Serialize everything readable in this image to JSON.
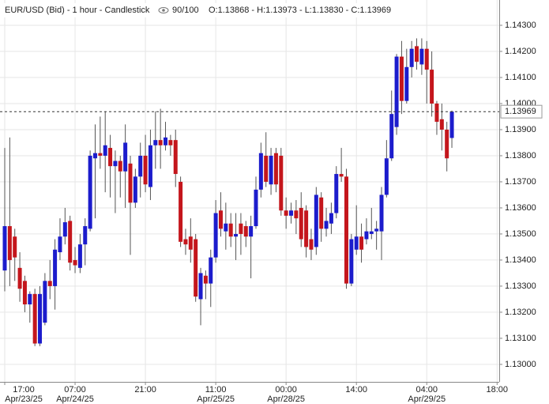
{
  "header": {
    "title": "EUR/USD (Bid) - 1 hour - Candlestick",
    "zoom": "90/100",
    "ohlc": "O:1.13868 - H:1.13973 - L:1.13830 - C:1.13969"
  },
  "chart_data": {
    "type": "candlestick",
    "categories": [
      "17:00",
      null,
      null,
      null,
      null,
      null,
      null,
      null,
      null,
      null,
      null,
      null,
      null,
      null,
      "07:00",
      null,
      null,
      null,
      null,
      null,
      null,
      null,
      null,
      null,
      null,
      null,
      null,
      null,
      "21:00",
      null,
      null,
      null,
      null,
      null,
      null,
      null,
      null,
      null,
      null,
      null,
      null,
      null,
      "11:00",
      null,
      null,
      null,
      null,
      null,
      null,
      null,
      null,
      null,
      null,
      null,
      null,
      null,
      "00:00",
      null,
      null,
      null,
      null,
      null,
      null,
      null,
      null,
      null,
      null,
      null,
      null,
      null,
      "14:00",
      null,
      null,
      null,
      null,
      null,
      null,
      null,
      null,
      null,
      null,
      null,
      null,
      null,
      "04:00",
      null,
      null,
      null,
      null,
      null,
      null,
      null,
      null,
      null,
      null,
      null,
      null,
      null,
      "18:00"
    ],
    "category_dates": [
      "Apr/23/25",
      null,
      null,
      null,
      null,
      null,
      null,
      null,
      null,
      null,
      null,
      null,
      null,
      null,
      "Apr/24/25",
      null,
      null,
      null,
      null,
      null,
      null,
      null,
      null,
      null,
      null,
      null,
      null,
      null,
      null,
      null,
      null,
      null,
      null,
      null,
      null,
      null,
      null,
      null,
      null,
      null,
      null,
      null,
      "Apr/25/25",
      null,
      null,
      null,
      null,
      null,
      null,
      null,
      null,
      null,
      null,
      null,
      null,
      null,
      "Apr/28/25",
      null,
      null,
      null,
      null,
      null,
      null,
      null,
      null,
      null,
      null,
      null,
      null,
      null,
      null,
      null,
      null,
      null,
      null,
      null,
      null,
      null,
      null,
      null,
      null,
      null,
      null,
      null,
      "Apr/29/25",
      null,
      null,
      null,
      null,
      null,
      null,
      null,
      null,
      null,
      null,
      null,
      null,
      null,
      null
    ],
    "open": [
      1.1336,
      1.1353,
      1.1349,
      1.1337,
      1.1332,
      1.1323,
      1.1327,
      1.1308,
      1.1316,
      1.1332,
      1.133,
      1.1343,
      1.1349,
      1.1355,
      1.134,
      1.1337,
      1.1346,
      1.1352,
      1.1379,
      1.1381,
      1.138,
      1.1383,
      1.1376,
      1.1378,
      1.1374,
      1.1377,
      1.1362,
      1.1372,
      1.138,
      1.1368,
      1.1384,
      1.1386,
      1.1384,
      1.1386,
      1.1386,
      1.137,
      1.1348,
      1.1349,
      1.1348,
      1.1325,
      1.1334,
      1.1331,
      1.1341,
      1.1359,
      1.1351,
      1.1354,
      1.1349,
      1.1354,
      1.1353,
      1.1349,
      1.1353,
      1.1367,
      1.138,
      1.1369,
      1.1381,
      1.138,
      1.1359,
      1.1357,
      1.1359,
      1.136,
      1.1359,
      1.1348,
      1.1345,
      1.1364,
      1.1352,
      1.1354,
      1.1358,
      1.1373,
      1.1372,
      1.1331,
      1.1344,
      1.1349,
      1.1348,
      1.135,
      1.1351,
      1.1351,
      1.1365,
      1.1379,
      1.1391,
      1.1418,
      1.1401,
      1.1414,
      1.1422,
      1.1415,
      1.1421,
      1.1413,
      1.14,
      1.1394,
      1.139,
      1.13868,
      null,
      null,
      null,
      null,
      null,
      null,
      null,
      null,
      null
    ],
    "high": [
      1.1383,
      1.1387,
      1.1352,
      1.1343,
      1.1334,
      1.1328,
      1.1329,
      1.133,
      1.1335,
      1.134,
      1.1348,
      1.1356,
      1.136,
      1.1357,
      1.1345,
      1.135,
      1.1356,
      1.1382,
      1.1392,
      1.1395,
      1.1397,
      1.1388,
      1.1382,
      1.138,
      1.1392,
      1.138,
      1.1375,
      1.1385,
      1.1388,
      1.139,
      1.1397,
      1.1398,
      1.1393,
      1.1388,
      1.139,
      1.1372,
      1.1352,
      1.1356,
      1.135,
      1.1337,
      1.1336,
      1.1344,
      1.1363,
      1.1366,
      1.1362,
      1.1358,
      1.1358,
      1.1358,
      1.1355,
      1.1357,
      1.1372,
      1.1385,
      1.1389,
      1.1383,
      1.1383,
      1.1383,
      1.1364,
      1.1362,
      1.1363,
      1.1366,
      1.1361,
      1.1352,
      1.1368,
      1.1366,
      1.136,
      1.1362,
      1.1376,
      1.1383,
      1.1375,
      1.135,
      1.1361,
      1.1354,
      1.1356,
      1.136,
      1.1355,
      1.1368,
      1.1386,
      1.1405,
      1.1419,
      1.1424,
      1.1421,
      1.1424,
      1.1425,
      1.1425,
      1.1424,
      1.142,
      1.1401,
      1.14,
      1.1393,
      1.13973,
      null,
      null,
      null,
      null,
      null,
      null,
      null,
      null,
      null
    ],
    "low": [
      1.1328,
      1.133,
      1.1332,
      1.1324,
      1.132,
      1.1316,
      1.1307,
      1.1307,
      1.1315,
      1.1325,
      1.1321,
      1.134,
      1.1346,
      1.1336,
      1.1335,
      1.1335,
      1.1338,
      1.1351,
      1.1356,
      1.1375,
      1.1366,
      1.1364,
      1.1358,
      1.1364,
      1.136,
      1.1342,
      1.136,
      1.1364,
      1.1366,
      1.1363,
      1.1375,
      1.1375,
      1.1382,
      1.138,
      1.1368,
      1.1345,
      1.1342,
      1.1339,
      1.1324,
      1.1315,
      1.1325,
      1.1322,
      1.1339,
      1.1349,
      1.1344,
      1.1345,
      1.134,
      1.1342,
      1.1345,
      1.1333,
      1.1352,
      1.1364,
      1.1368,
      1.1365,
      1.1366,
      1.1357,
      1.1352,
      1.1354,
      1.135,
      1.1345,
      1.1341,
      1.134,
      1.1342,
      1.1347,
      1.1349,
      1.135,
      1.1356,
      1.137,
      1.1329,
      1.133,
      1.1342,
      1.1339,
      1.1346,
      1.1348,
      1.1344,
      1.134,
      1.1364,
      1.1378,
      1.1388,
      1.1396,
      1.14,
      1.141,
      1.1413,
      1.1411,
      1.14,
      1.1395,
      1.1388,
      1.1382,
      1.1374,
      1.1383,
      null,
      null,
      null,
      null,
      null,
      null,
      null,
      null,
      null
    ],
    "close": [
      1.1353,
      1.134,
      1.1341,
      1.1329,
      1.1323,
      1.1327,
      1.1308,
      1.1327,
      1.1332,
      1.133,
      1.1344,
      1.1349,
      1.13545,
      1.1339,
      1.1338,
      1.1346,
      1.1353,
      1.138,
      1.1381,
      1.138,
      1.1384,
      1.1376,
      1.1378,
      1.1374,
      1.1385,
      1.1362,
      1.1372,
      1.138,
      1.1369,
      1.1384,
      1.1386,
      1.1384,
      1.1387,
      1.1384,
      1.1373,
      1.1347,
      1.1346,
      1.1344,
      1.1326,
      1.1335,
      1.1331,
      1.1341,
      1.1358,
      1.1352,
      1.1354,
      1.1349,
      1.135,
      1.135,
      1.1349,
      1.1353,
      1.1367,
      1.1381,
      1.137,
      1.138,
      1.1369,
      1.1359,
      1.1357,
      1.1359,
      1.1356,
      1.1348,
      1.1345,
      1.1344,
      1.1365,
      1.1352,
      1.1355,
      1.1358,
      1.1373,
      1.1372,
      1.1331,
      1.1348,
      1.1349,
      1.1344,
      1.1351,
      1.1351,
      1.1352,
      1.1365,
      1.1379,
      1.1396,
      1.1418,
      1.1401,
      1.1414,
      1.1421,
      1.1416,
      1.1421,
      1.1413,
      1.14,
      1.1393,
      1.139,
      1.1379,
      1.13969,
      null,
      null,
      null,
      null,
      null,
      null,
      null,
      null,
      null
    ],
    "up_color": "#1c1ccc",
    "down_color": "#c4161c",
    "wick_color": "#555555",
    "last_price": 1.13969,
    "ylim": [
      1.12933,
      1.14397
    ],
    "yticks": [
      {
        "value": 1.13,
        "label": "1.13000"
      },
      {
        "value": 1.131,
        "label": "1.13100"
      },
      {
        "value": 1.132,
        "label": "1.13200"
      },
      {
        "value": 1.133,
        "label": "1.13300"
      },
      {
        "value": 1.134,
        "label": "1.13400"
      },
      {
        "value": 1.135,
        "label": "1.13500"
      },
      {
        "value": 1.136,
        "label": "1.13600"
      },
      {
        "value": 1.137,
        "label": "1.13700"
      },
      {
        "value": 1.138,
        "label": "1.13800"
      },
      {
        "value": 1.139,
        "label": "1.13900"
      },
      {
        "value": 1.14,
        "label": "1.14000"
      },
      {
        "value": 1.141,
        "label": "1.14100"
      },
      {
        "value": 1.142,
        "label": "1.14200"
      },
      {
        "value": 1.143,
        "label": "1.14300"
      }
    ],
    "grid": true
  }
}
